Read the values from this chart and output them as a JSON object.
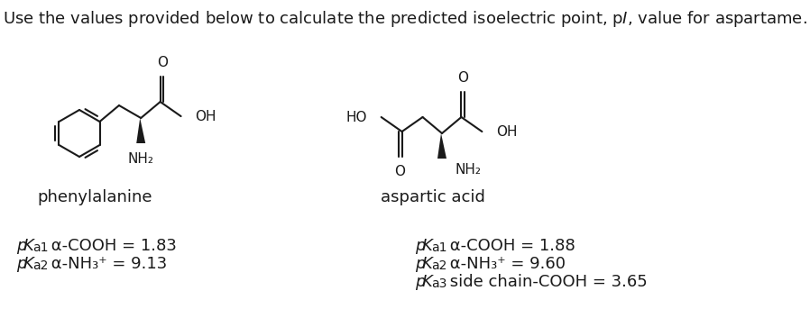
{
  "background_color": "#ffffff",
  "text_color": "#1a1a1a",
  "phe_label": "phenylalanine",
  "asp_label": "aspartic acid",
  "phe_pka1_text": "α-COOH = 1.83",
  "phe_pka2_text": "α-NH₃⁺ = 9.13",
  "asp_pka1_text": "α-COOH = 1.88",
  "asp_pka2_text": "α-NH₃⁺ = 9.60",
  "asp_pka3_text": "side chain-COOH = 3.65",
  "font_size_title": 13,
  "font_size_label": 13,
  "font_size_pka": 13,
  "font_size_atom": 11
}
